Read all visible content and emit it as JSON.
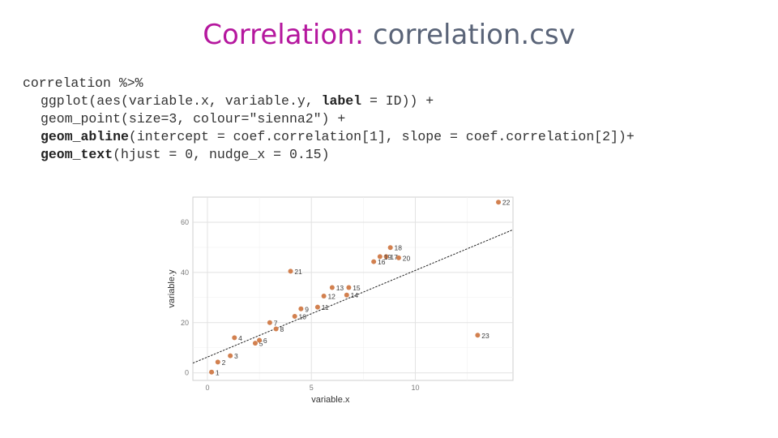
{
  "slide": {
    "title_main": "Correlation:",
    "title_rest": "correlation.csv"
  },
  "code": {
    "lines": [
      [
        {
          "t": "correlation %>%"
        }
      ],
      [
        {
          "t": "ggplot(aes(variable.x, variable.y, "
        },
        {
          "t": "label",
          "b": true
        },
        {
          "t": " = ID)) +"
        }
      ],
      [
        {
          "t": "geom_point(size=3, colour=\"sienna2\") +"
        }
      ],
      [
        {
          "t": "geom_abline",
          "b": true
        },
        {
          "t": "(intercept = coef.correlation[1], slope = coef.correlation[2])+"
        }
      ],
      [
        {
          "t": "geom_text",
          "b": true
        },
        {
          "t": "(hjust = 0, nudge_x = 0.15)"
        }
      ]
    ]
  },
  "chart_data": {
    "type": "scatter",
    "xlabel": "variable.x",
    "ylabel": "variable.y",
    "xlim": [
      -0.7,
      14.7
    ],
    "ylim": [
      -3,
      70
    ],
    "x_ticks": [
      0,
      5,
      10
    ],
    "x_tick_labels": [
      "0",
      "5",
      "10"
    ],
    "y_ticks": [
      0,
      20,
      40,
      60
    ],
    "y_tick_labels": [
      "0",
      "20",
      "40",
      "60"
    ],
    "grid": true,
    "point_color": "#d2804f",
    "line_color": "#222222",
    "abline": {
      "intercept": 6.3,
      "slope": 3.45
    },
    "points": [
      {
        "id": "1",
        "x": 0.2,
        "y": 0.3
      },
      {
        "id": "2",
        "x": 0.5,
        "y": 4.3
      },
      {
        "id": "3",
        "x": 1.1,
        "y": 6.8
      },
      {
        "id": "4",
        "x": 1.3,
        "y": 14.0
      },
      {
        "id": "5",
        "x": 2.3,
        "y": 11.8
      },
      {
        "id": "6",
        "x": 2.5,
        "y": 13.0
      },
      {
        "id": "7",
        "x": 3.0,
        "y": 20.0
      },
      {
        "id": "8",
        "x": 3.3,
        "y": 17.5
      },
      {
        "id": "9",
        "x": 4.5,
        "y": 25.5
      },
      {
        "id": "10",
        "x": 4.2,
        "y": 22.5
      },
      {
        "id": "11",
        "x": 5.3,
        "y": 26.2
      },
      {
        "id": "12",
        "x": 5.6,
        "y": 30.6
      },
      {
        "id": "13",
        "x": 6.0,
        "y": 34.0
      },
      {
        "id": "14",
        "x": 6.7,
        "y": 31.0
      },
      {
        "id": "15",
        "x": 6.8,
        "y": 34.0
      },
      {
        "id": "16",
        "x": 8.0,
        "y": 44.3
      },
      {
        "id": "17",
        "x": 8.6,
        "y": 46.3
      },
      {
        "id": "18",
        "x": 8.8,
        "y": 49.9
      },
      {
        "id": "19",
        "x": 8.3,
        "y": 46.3
      },
      {
        "id": "20",
        "x": 9.2,
        "y": 45.8
      },
      {
        "id": "21",
        "x": 4.0,
        "y": 40.5
      },
      {
        "id": "22",
        "x": 14.0,
        "y": 68.0
      },
      {
        "id": "23",
        "x": 13.0,
        "y": 15.0
      }
    ]
  }
}
